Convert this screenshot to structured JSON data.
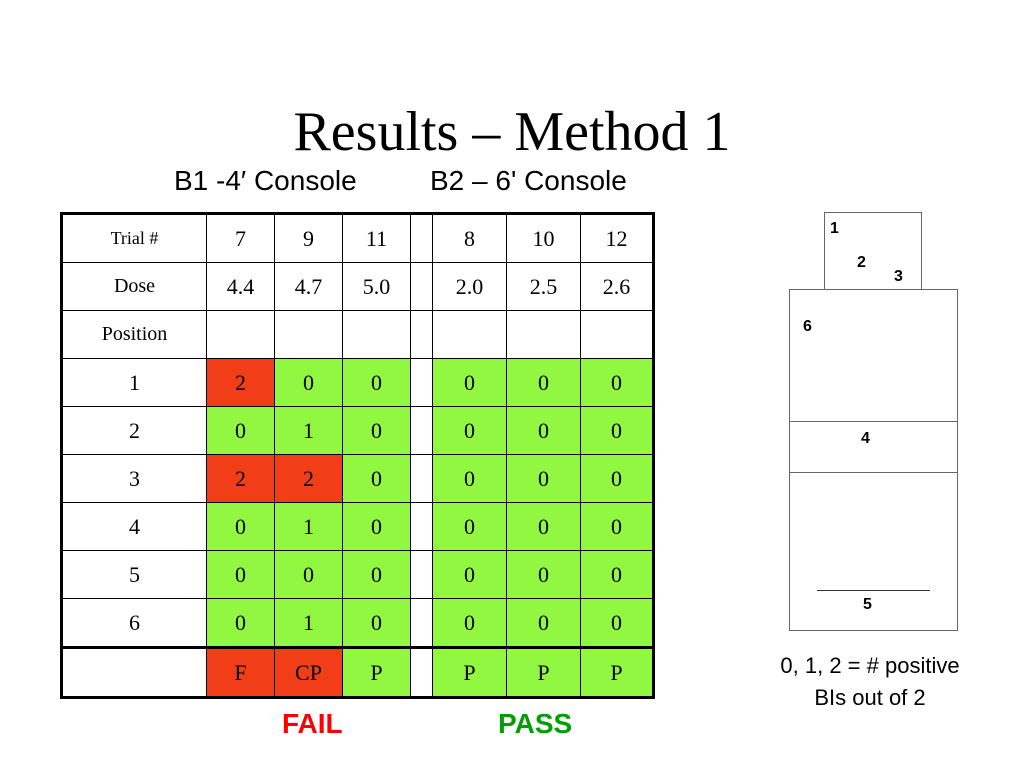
{
  "title": "Results – Method 1",
  "subtitles": {
    "b1": "B1 -4′ Console",
    "b2": "B2 – 6' Console"
  },
  "table": {
    "rows": [
      {
        "label": "Trial #",
        "b1": [
          "7",
          "9",
          "11"
        ],
        "b2": [
          "8",
          "10",
          "12"
        ]
      },
      {
        "label": "Dose",
        "b1": [
          "4.4",
          "4.7",
          "5.0"
        ],
        "b2": [
          "2.0",
          "2.5",
          "2.6"
        ]
      },
      {
        "label": "Position",
        "b1": [
          "",
          "",
          ""
        ],
        "b2": [
          "",
          "",
          ""
        ]
      },
      {
        "label": "1",
        "b1": [
          "2",
          "0",
          "0"
        ],
        "b2": [
          "0",
          "0",
          "0"
        ]
      },
      {
        "label": "2",
        "b1": [
          "0",
          "1",
          "0"
        ],
        "b2": [
          "0",
          "0",
          "0"
        ]
      },
      {
        "label": "3",
        "b1": [
          "2",
          "2",
          "0"
        ],
        "b2": [
          "0",
          "0",
          "0"
        ]
      },
      {
        "label": "4",
        "b1": [
          "0",
          "1",
          "0"
        ],
        "b2": [
          "0",
          "0",
          "0"
        ]
      },
      {
        "label": "5",
        "b1": [
          "0",
          "0",
          "0"
        ],
        "b2": [
          "0",
          "0",
          "0"
        ]
      },
      {
        "label": "6",
        "b1": [
          "0",
          "1",
          "0"
        ],
        "b2": [
          "0",
          "0",
          "0"
        ]
      },
      {
        "label": "",
        "b1": [
          "F",
          "CP",
          "P"
        ],
        "b2": [
          "P",
          "P",
          "P"
        ]
      }
    ]
  },
  "colors": {
    "fail_cell": "#f23d19",
    "pass_cell": "#91f740",
    "fail_text": "#ff0000",
    "pass_text": "#00a000"
  },
  "verdicts": {
    "fail": "FAIL",
    "pass": "PASS"
  },
  "legend": {
    "line1": "0, 1, 2 = # positive",
    "line2": "BIs out of 2"
  },
  "diagram": {
    "position_labels": [
      "1",
      "2",
      "3",
      "6",
      "4",
      "5"
    ]
  }
}
